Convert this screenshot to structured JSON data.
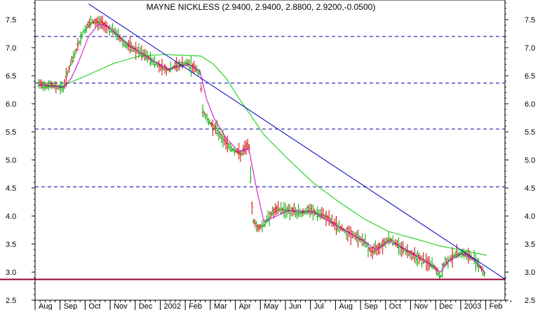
{
  "chart_data": {
    "type": "line",
    "title": "MAYNE NICKLESS (2.9400, 2.9400, 2.8800, 2.9200,-0.0500)",
    "y_ticks": [
      "2.5",
      "3.0",
      "3.5",
      "4.0",
      "4.5",
      "5.0",
      "5.5",
      "6.0",
      "6.5",
      "7.0",
      "7.5"
    ],
    "y_tick_values": [
      2.5,
      3.0,
      3.5,
      4.0,
      4.5,
      5.0,
      5.5,
      6.0,
      6.5,
      7.0,
      7.5
    ],
    "ylim": [
      2.5,
      7.85
    ],
    "x_ticks": [
      "Aug",
      "Sep",
      "Oct",
      "Nov",
      "Dec",
      "2002",
      "Feb",
      "Mar",
      "Apr",
      "May",
      "Jun",
      "Jul",
      "Aug",
      "Sep",
      "Oct",
      "Nov",
      "Dec",
      "2003",
      "Feb"
    ],
    "x_tick_positions": [
      0,
      1,
      2,
      3,
      4,
      5,
      6,
      7,
      8,
      9,
      10,
      11,
      12,
      13,
      14,
      15,
      16,
      17,
      18
    ],
    "xlim": [
      -0.1,
      19.05
    ],
    "price_keyframes": [
      [
        0,
        6.35
      ],
      [
        0.5,
        6.33
      ],
      [
        1.0,
        6.28
      ],
      [
        1.15,
        6.55
      ],
      [
        1.5,
        6.95
      ],
      [
        1.8,
        7.3
      ],
      [
        2.1,
        7.45
      ],
      [
        2.5,
        7.45
      ],
      [
        2.8,
        7.35
      ],
      [
        3.1,
        7.25
      ],
      [
        3.5,
        7.05
      ],
      [
        3.9,
        6.95
      ],
      [
        4.3,
        6.85
      ],
      [
        4.6,
        6.75
      ],
      [
        4.9,
        6.65
      ],
      [
        5.2,
        6.6
      ],
      [
        5.5,
        6.68
      ],
      [
        5.9,
        6.72
      ],
      [
        6.2,
        6.65
      ],
      [
        6.45,
        6.55
      ],
      [
        6.55,
        5.9
      ],
      [
        6.75,
        5.7
      ],
      [
        7.1,
        5.55
      ],
      [
        7.4,
        5.35
      ],
      [
        7.7,
        5.2
      ],
      [
        8.1,
        5.1
      ],
      [
        8.4,
        5.3
      ],
      [
        8.55,
        3.95
      ],
      [
        8.75,
        3.78
      ],
      [
        9.0,
        3.85
      ],
      [
        9.3,
        4.05
      ],
      [
        9.6,
        4.12
      ],
      [
        10.0,
        4.1
      ],
      [
        10.4,
        4.05
      ],
      [
        10.8,
        4.1
      ],
      [
        11.1,
        4.05
      ],
      [
        11.5,
        3.98
      ],
      [
        11.8,
        3.85
      ],
      [
        12.2,
        3.75
      ],
      [
        12.6,
        3.65
      ],
      [
        13.0,
        3.55
      ],
      [
        13.3,
        3.35
      ],
      [
        13.6,
        3.45
      ],
      [
        14.0,
        3.6
      ],
      [
        14.3,
        3.5
      ],
      [
        14.6,
        3.4
      ],
      [
        15.0,
        3.3
      ],
      [
        15.4,
        3.2
      ],
      [
        15.8,
        3.1
      ],
      [
        16.05,
        2.9
      ],
      [
        16.2,
        3.15
      ],
      [
        16.6,
        3.3
      ],
      [
        16.9,
        3.35
      ],
      [
        17.2,
        3.28
      ],
      [
        17.5,
        3.2
      ],
      [
        17.7,
        3.05
      ],
      [
        17.85,
        2.92
      ]
    ],
    "ma_short_keyframes": [
      [
        0,
        6.33
      ],
      [
        1.0,
        6.3
      ],
      [
        1.3,
        6.45
      ],
      [
        1.6,
        6.75
      ],
      [
        2.0,
        7.2
      ],
      [
        2.4,
        7.42
      ],
      [
        2.8,
        7.37
      ],
      [
        3.5,
        7.08
      ],
      [
        4.5,
        6.78
      ],
      [
        5.2,
        6.62
      ],
      [
        6.0,
        6.7
      ],
      [
        6.45,
        6.58
      ],
      [
        6.7,
        6.1
      ],
      [
        7.0,
        5.75
      ],
      [
        7.5,
        5.38
      ],
      [
        8.0,
        5.15
      ],
      [
        8.4,
        5.2
      ],
      [
        8.7,
        4.5
      ],
      [
        9.0,
        3.9
      ],
      [
        9.4,
        3.98
      ],
      [
        10.0,
        4.1
      ],
      [
        11.0,
        4.07
      ],
      [
        12.0,
        3.8
      ],
      [
        13.0,
        3.55
      ],
      [
        13.5,
        3.4
      ],
      [
        14.0,
        3.55
      ],
      [
        14.5,
        3.45
      ],
      [
        15.5,
        3.18
      ],
      [
        16.05,
        3.0
      ],
      [
        16.4,
        3.2
      ],
      [
        16.9,
        3.33
      ],
      [
        17.4,
        3.22
      ],
      [
        17.85,
        2.98
      ]
    ],
    "ma_long_keyframes": [
      [
        0,
        6.28
      ],
      [
        1.0,
        6.33
      ],
      [
        2.0,
        6.52
      ],
      [
        3.0,
        6.72
      ],
      [
        4.0,
        6.85
      ],
      [
        5.0,
        6.88
      ],
      [
        6.0,
        6.86
      ],
      [
        6.5,
        6.85
      ],
      [
        7.0,
        6.7
      ],
      [
        7.5,
        6.45
      ],
      [
        8.0,
        6.1
      ],
      [
        8.5,
        5.78
      ],
      [
        9.0,
        5.45
      ],
      [
        10.0,
        5.0
      ],
      [
        11.0,
        4.58
      ],
      [
        12.0,
        4.25
      ],
      [
        13.0,
        3.95
      ],
      [
        14.0,
        3.72
      ],
      [
        15.0,
        3.6
      ],
      [
        16.0,
        3.47
      ],
      [
        17.0,
        3.38
      ],
      [
        17.9,
        3.3
      ]
    ],
    "trendline": [
      [
        2.0,
        7.78
      ],
      [
        18.65,
        2.87
      ]
    ],
    "horizontal_dashed_levels": [
      7.2,
      6.37,
      5.55,
      4.52
    ],
    "support_level": 2.87,
    "colors": {
      "price": "#cc0000",
      "ma_short": "#cc00cc",
      "ma_long": "#00cc00",
      "trendline": "#0000bb",
      "dashed": "#0000aa",
      "support": "#990033"
    }
  }
}
